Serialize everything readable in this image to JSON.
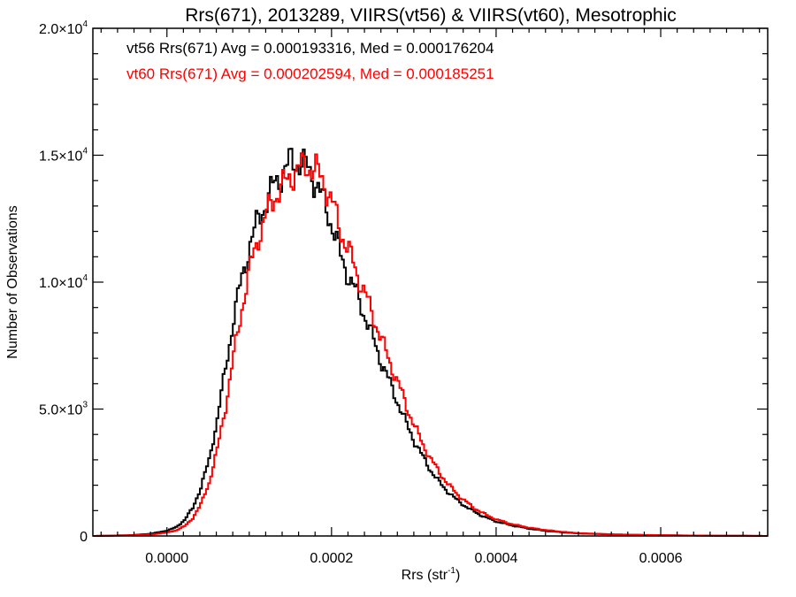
{
  "chart_data": {
    "type": "histogram-step",
    "title": "Rrs(671), 2013289, VIIRS(vt56) & VIIRS(vt60), Mesotrophic",
    "xlabel_main": "Rrs (str",
    "xlabel_sup": "-1",
    "xlabel_close": ")",
    "ylabel": "Number of Observations",
    "xlim": [
      -9e-05,
      0.00073
    ],
    "ylim": [
      0,
      20000
    ],
    "x_ticks": [
      {
        "value": 0.0,
        "label": "0.0000"
      },
      {
        "value": 0.0002,
        "label": "0.0002"
      },
      {
        "value": 0.0004,
        "label": "0.0004"
      },
      {
        "value": 0.0006,
        "label": "0.0006"
      }
    ],
    "y_ticks": [
      {
        "value": 0,
        "mant": "0",
        "exp": ""
      },
      {
        "value": 5000,
        "mant": "5.0×10",
        "exp": "3"
      },
      {
        "value": 10000,
        "mant": "1.0×10",
        "exp": "4"
      },
      {
        "value": 15000,
        "mant": "1.5×10",
        "exp": "4"
      },
      {
        "value": 20000,
        "mant": "2.0×10",
        "exp": "4"
      }
    ],
    "annotations": [
      {
        "text": "vt56 Rrs(671) Avg = 0.000193316, Med = 0.000176204",
        "color": "#000000"
      },
      {
        "text": "vt60 Rrs(671) Avg = 0.000202594, Med = 0.000185251",
        "color": "#ff0000"
      }
    ],
    "series": [
      {
        "name": "vt56",
        "color": "#000000",
        "points": [
          [
            -9e-05,
            0
          ],
          [
            -6e-05,
            20
          ],
          [
            -4e-05,
            40
          ],
          [
            -2e-05,
            90
          ],
          [
            0.0,
            220
          ],
          [
            1e-05,
            350
          ],
          [
            2e-05,
            620
          ],
          [
            3e-05,
            1100
          ],
          [
            4e-05,
            1900
          ],
          [
            5e-05,
            3000
          ],
          [
            6e-05,
            4600
          ],
          [
            7e-05,
            6600
          ],
          [
            8e-05,
            8600
          ],
          [
            9e-05,
            10200
          ],
          [
            0.0001,
            11500
          ],
          [
            0.00011,
            12500
          ],
          [
            0.00012,
            13200
          ],
          [
            0.00013,
            13900
          ],
          [
            0.00014,
            14300
          ],
          [
            0.00015,
            14800
          ],
          [
            0.00016,
            14700
          ],
          [
            0.00017,
            14500
          ],
          [
            0.00018,
            13900
          ],
          [
            0.00019,
            13100
          ],
          [
            0.0002,
            12200
          ],
          [
            0.00021,
            11000
          ],
          [
            0.00022,
            10200
          ],
          [
            0.00023,
            9500
          ],
          [
            0.00024,
            8600
          ],
          [
            0.00025,
            7700
          ],
          [
            0.00026,
            6800
          ],
          [
            0.00027,
            6000
          ],
          [
            0.00028,
            5200
          ],
          [
            0.00029,
            4400
          ],
          [
            0.0003,
            3700
          ],
          [
            0.00031,
            3100
          ],
          [
            0.00032,
            2550
          ],
          [
            0.00033,
            2100
          ],
          [
            0.00034,
            1750
          ],
          [
            0.00035,
            1450
          ],
          [
            0.00036,
            1200
          ],
          [
            0.00037,
            1000
          ],
          [
            0.00038,
            820
          ],
          [
            0.00039,
            680
          ],
          [
            0.0004,
            560
          ],
          [
            0.00042,
            400
          ],
          [
            0.00044,
            280
          ],
          [
            0.00046,
            200
          ],
          [
            0.00048,
            140
          ],
          [
            0.0005,
            100
          ],
          [
            0.00054,
            60
          ],
          [
            0.00058,
            35
          ],
          [
            0.00062,
            20
          ],
          [
            0.00066,
            12
          ],
          [
            0.0007,
            6
          ],
          [
            0.00073,
            0
          ]
        ]
      },
      {
        "name": "vt60",
        "color": "#ff0000",
        "points": [
          [
            -9e-05,
            0
          ],
          [
            -6e-05,
            15
          ],
          [
            -4e-05,
            30
          ],
          [
            -2e-05,
            60
          ],
          [
            0.0,
            140
          ],
          [
            1e-05,
            220
          ],
          [
            2e-05,
            380
          ],
          [
            3e-05,
            700
          ],
          [
            4e-05,
            1250
          ],
          [
            5e-05,
            2100
          ],
          [
            6e-05,
            3400
          ],
          [
            7e-05,
            5100
          ],
          [
            8e-05,
            7100
          ],
          [
            9e-05,
            9000
          ],
          [
            0.0001,
            10600
          ],
          [
            0.00011,
            11800
          ],
          [
            0.00012,
            12700
          ],
          [
            0.00013,
            13400
          ],
          [
            0.00014,
            13800
          ],
          [
            0.00015,
            14200
          ],
          [
            0.00016,
            14500
          ],
          [
            0.00017,
            14600
          ],
          [
            0.00018,
            14400
          ],
          [
            0.00019,
            13900
          ],
          [
            0.0002,
            13100
          ],
          [
            0.00021,
            12000
          ],
          [
            0.00022,
            11200
          ],
          [
            0.00023,
            10300
          ],
          [
            0.00024,
            9500
          ],
          [
            0.00025,
            8600
          ],
          [
            0.00026,
            7700
          ],
          [
            0.00027,
            6800
          ],
          [
            0.00028,
            6000
          ],
          [
            0.00029,
            5100
          ],
          [
            0.0003,
            4300
          ],
          [
            0.00031,
            3600
          ],
          [
            0.00032,
            3000
          ],
          [
            0.00033,
            2500
          ],
          [
            0.00034,
            2050
          ],
          [
            0.00035,
            1700
          ],
          [
            0.00036,
            1400
          ],
          [
            0.00037,
            1150
          ],
          [
            0.00038,
            950
          ],
          [
            0.00039,
            780
          ],
          [
            0.0004,
            640
          ],
          [
            0.00042,
            450
          ],
          [
            0.00044,
            320
          ],
          [
            0.00046,
            230
          ],
          [
            0.00048,
            160
          ],
          [
            0.0005,
            110
          ],
          [
            0.00054,
            65
          ],
          [
            0.00058,
            40
          ],
          [
            0.00062,
            22
          ],
          [
            0.00066,
            13
          ],
          [
            0.0007,
            7
          ],
          [
            0.00073,
            0
          ]
        ]
      }
    ]
  }
}
